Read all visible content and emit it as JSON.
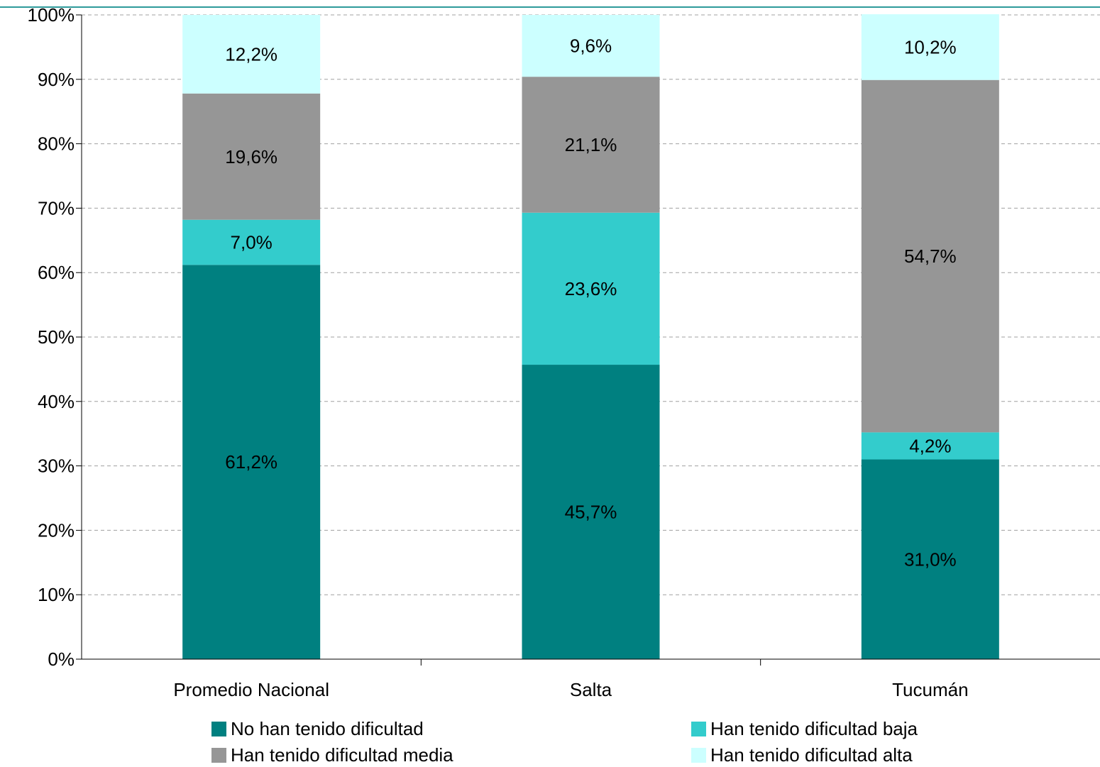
{
  "chart_data": {
    "type": "bar",
    "stacked": true,
    "categories": [
      "Promedio Nacional",
      "Salta",
      "Tucumán"
    ],
    "series": [
      {
        "name": "No han tenido dificultad",
        "color": "#008080",
        "values": [
          61.2,
          45.7,
          31.0
        ],
        "labels": [
          "61,2%",
          "45,7%",
          "31,0%"
        ]
      },
      {
        "name": "Han tenido dificultad baja",
        "color": "#33CCCC",
        "values": [
          7.0,
          23.6,
          4.2
        ],
        "labels": [
          "7,0%",
          "23,6%",
          "4,2%"
        ]
      },
      {
        "name": "Han tenido dificultad media",
        "color": "#969696",
        "values": [
          19.6,
          21.1,
          54.7
        ],
        "labels": [
          "19,6%",
          "21,1%",
          "54,7%"
        ]
      },
      {
        "name": "Han tenido dificultad alta",
        "color": "#CCFFFF",
        "values": [
          12.2,
          9.6,
          10.2
        ],
        "labels": [
          "12,2%",
          "9,6%",
          "10,2%"
        ]
      }
    ],
    "ylim": [
      0,
      100
    ],
    "yticks": [
      "0%",
      "10%",
      "20%",
      "30%",
      "40%",
      "50%",
      "60%",
      "70%",
      "80%",
      "90%",
      "100%"
    ],
    "grid": true,
    "legend_position": "bottom",
    "title": "",
    "xlabel": "",
    "ylabel": ""
  }
}
